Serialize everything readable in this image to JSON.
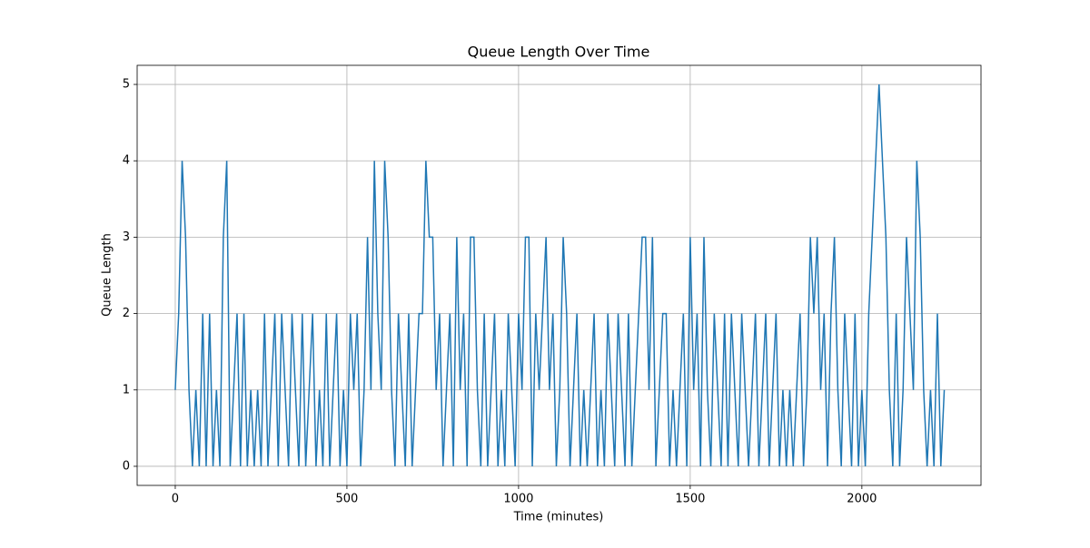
{
  "chart_data": {
    "type": "line",
    "title": "Queue Length Over Time",
    "x_label": "Time (minutes)",
    "y_label": "Queue Length",
    "x": [
      0,
      10,
      20,
      30,
      40,
      50,
      60,
      70,
      80,
      90,
      100,
      110,
      120,
      130,
      140,
      150,
      160,
      170,
      180,
      190,
      200,
      210,
      220,
      230,
      240,
      250,
      260,
      270,
      280,
      290,
      300,
      310,
      320,
      330,
      340,
      350,
      360,
      370,
      380,
      390,
      400,
      410,
      420,
      430,
      440,
      450,
      460,
      470,
      480,
      490,
      500,
      510,
      520,
      530,
      540,
      550,
      560,
      570,
      580,
      590,
      600,
      610,
      620,
      630,
      640,
      650,
      660,
      670,
      680,
      690,
      700,
      710,
      720,
      730,
      740,
      750,
      760,
      770,
      780,
      790,
      800,
      810,
      820,
      830,
      840,
      850,
      860,
      870,
      880,
      890,
      900,
      910,
      920,
      930,
      940,
      950,
      960,
      970,
      980,
      990,
      1000,
      1010,
      1020,
      1030,
      1040,
      1050,
      1060,
      1070,
      1080,
      1090,
      1100,
      1110,
      1120,
      1130,
      1140,
      1150,
      1160,
      1170,
      1180,
      1190,
      1200,
      1210,
      1220,
      1230,
      1240,
      1250,
      1260,
      1270,
      1280,
      1290,
      1300,
      1310,
      1320,
      1330,
      1340,
      1350,
      1360,
      1370,
      1380,
      1390,
      1400,
      1410,
      1420,
      1430,
      1440,
      1450,
      1460,
      1470,
      1480,
      1490,
      1500,
      1510,
      1520,
      1530,
      1540,
      1550,
      1560,
      1570,
      1580,
      1590,
      1600,
      1610,
      1620,
      1630,
      1640,
      1650,
      1660,
      1670,
      1680,
      1690,
      1700,
      1710,
      1720,
      1730,
      1740,
      1750,
      1760,
      1770,
      1780,
      1790,
      1800,
      1810,
      1820,
      1830,
      1840,
      1850,
      1860,
      1870,
      1880,
      1890,
      1900,
      1910,
      1920,
      1930,
      1940,
      1950,
      1960,
      1970,
      1980,
      1990,
      2000,
      2010,
      2020,
      2030,
      2040,
      2050,
      2060,
      2070,
      2080,
      2090,
      2100,
      2110,
      2120,
      2130,
      2140,
      2150,
      2160,
      2170,
      2180,
      2190,
      2200,
      2210,
      2220,
      2230,
      2240
    ],
    "series": [
      {
        "name": "Queue Length",
        "color": "#1f77b4",
        "values": [
          1,
          2,
          4,
          3,
          1,
          0,
          1,
          0,
          2,
          0,
          2,
          0,
          1,
          0,
          3,
          4,
          0,
          1,
          2,
          0,
          2,
          0,
          1,
          0,
          1,
          0,
          2,
          0,
          1,
          2,
          0,
          2,
          1,
          0,
          2,
          1,
          0,
          2,
          0,
          1,
          2,
          0,
          1,
          0,
          2,
          0,
          1,
          2,
          0,
          1,
          0,
          2,
          1,
          2,
          0,
          1,
          3,
          1,
          4,
          2,
          1,
          4,
          3,
          1,
          0,
          2,
          1,
          0,
          2,
          0,
          1,
          2,
          2,
          4,
          3,
          3,
          1,
          2,
          0,
          1,
          2,
          0,
          3,
          1,
          2,
          0,
          3,
          3,
          1,
          0,
          2,
          0,
          1,
          2,
          0,
          1,
          0,
          2,
          1,
          0,
          2,
          1,
          3,
          3,
          0,
          2,
          1,
          2,
          3,
          1,
          2,
          0,
          1,
          3,
          2,
          0,
          1,
          2,
          0,
          1,
          0,
          1,
          2,
          0,
          1,
          0,
          2,
          1,
          0,
          2,
          1,
          0,
          2,
          0,
          1,
          2,
          3,
          3,
          1,
          3,
          0,
          1,
          2,
          2,
          0,
          1,
          0,
          1,
          2,
          0,
          3,
          1,
          2,
          0,
          3,
          1,
          0,
          2,
          1,
          0,
          2,
          0,
          2,
          1,
          0,
          2,
          1,
          0,
          1,
          2,
          0,
          1,
          2,
          0,
          1,
          2,
          0,
          1,
          0,
          1,
          0,
          1,
          2,
          0,
          1,
          3,
          2,
          3,
          1,
          2,
          0,
          2,
          3,
          1,
          0,
          2,
          1,
          0,
          2,
          0,
          1,
          0,
          2,
          3,
          4,
          5,
          4,
          3,
          1,
          0,
          2,
          0,
          1,
          3,
          2,
          1,
          4,
          3,
          1,
          0,
          1,
          0,
          2,
          0,
          1
        ]
      }
    ],
    "xlim": [
      -111,
      2347
    ],
    "ylim": [
      -0.25,
      5.25
    ],
    "xticks": [
      0,
      500,
      1000,
      1500,
      2000
    ],
    "yticks": [
      0,
      1,
      2,
      3,
      4,
      5
    ],
    "grid": true
  }
}
